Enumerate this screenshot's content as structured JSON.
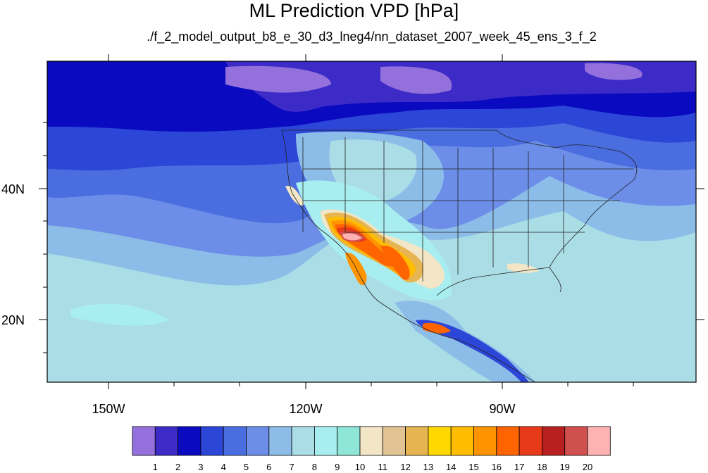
{
  "title": "ML Prediction VPD [hPa]",
  "subtitle": "./f_2_model_output_b8_e_30_d3_lneg4/nn_dataset_2007_week_45_ens_3_f_2",
  "lat_labels": [
    "40N",
    "20N"
  ],
  "lon_labels": [
    "150W",
    "120W",
    "90W"
  ],
  "colorbar": {
    "labels": [
      "1",
      "2",
      "3",
      "4",
      "5",
      "6",
      "7",
      "8",
      "9",
      "10",
      "11",
      "12",
      "13",
      "14",
      "15",
      "16",
      "17",
      "18",
      "19",
      "20"
    ],
    "colors": [
      "#9370db",
      "#3d2bc8",
      "#0a0ac0",
      "#2c46d8",
      "#4a6ee0",
      "#6c8ee8",
      "#8cbce8",
      "#aadde6",
      "#a8eef0",
      "#8ee6d6",
      "#f2e6c6",
      "#e2c494",
      "#e6b450",
      "#ffd800",
      "#ffbc00",
      "#ff9400",
      "#ff6400",
      "#e83a18",
      "#b82020",
      "#d05050",
      "#ffb2b2"
    ]
  }
}
